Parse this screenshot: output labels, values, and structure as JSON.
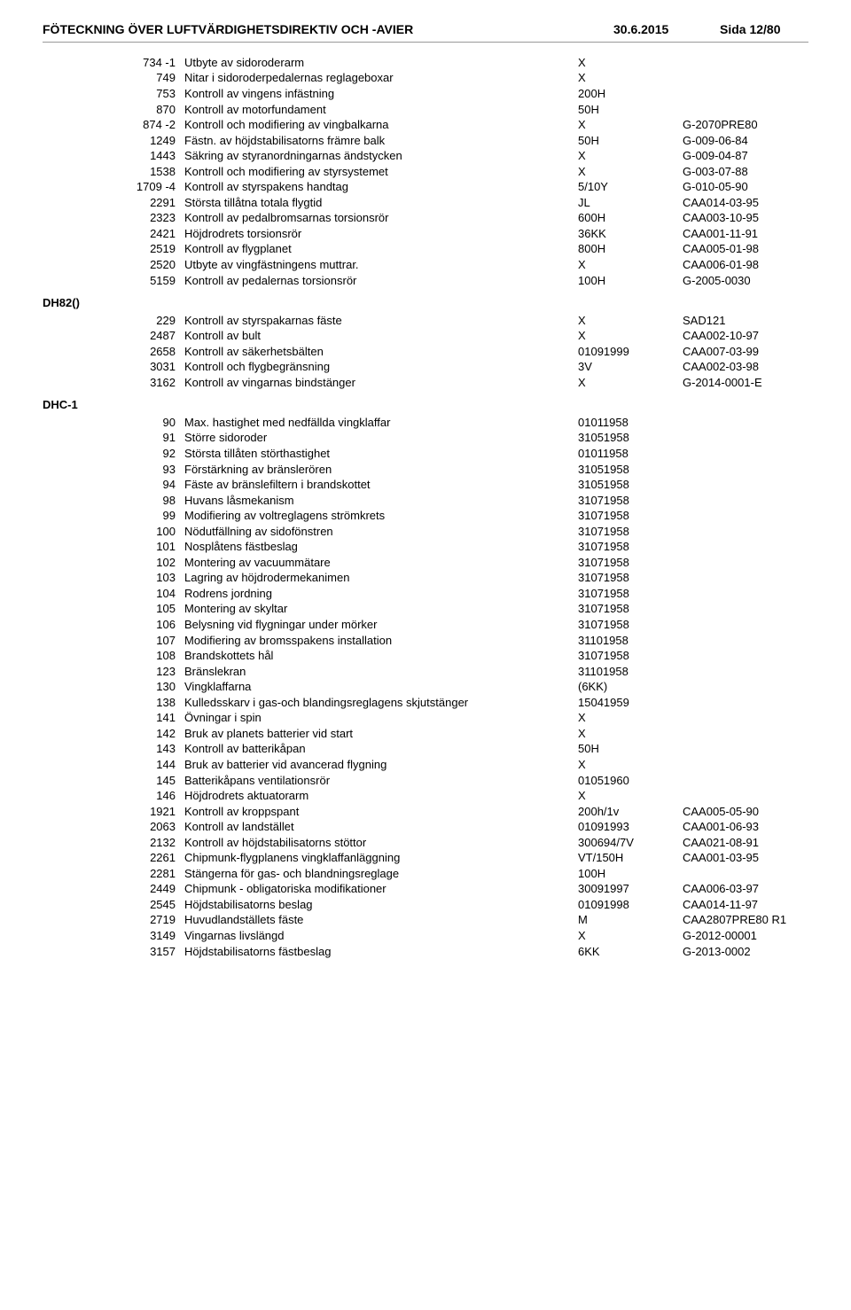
{
  "header": {
    "title": "FÖTECKNING ÖVER LUFTVÄRDIGHETSDIREKTIV OCH -AVIER",
    "date": "30.6.2015",
    "page": "Sida 12/80"
  },
  "groups": [
    {
      "title": "",
      "rows": [
        {
          "code": "734 -1",
          "desc": "Utbyte av sidoroderarm",
          "val": "X",
          "ref": ""
        },
        {
          "code": "749",
          "desc": "Nitar i sidoroderpedalernas reglageboxar",
          "val": "X",
          "ref": ""
        },
        {
          "code": "753",
          "desc": "Kontroll av vingens infästning",
          "val": "200H",
          "ref": ""
        },
        {
          "code": "870",
          "desc": "Kontroll av motorfundament",
          "val": "50H",
          "ref": ""
        },
        {
          "code": "874 -2",
          "desc": "Kontroll och modifiering av vingbalkarna",
          "val": "X",
          "ref": "G-2070PRE80"
        },
        {
          "code": "1249",
          "desc": "Fästn. av höjdstabilisatorns främre balk",
          "val": "50H",
          "ref": "G-009-06-84"
        },
        {
          "code": "1443",
          "desc": "Säkring av styranordningarnas ändstycken",
          "val": "X",
          "ref": "G-009-04-87"
        },
        {
          "code": "1538",
          "desc": "Kontroll och modifiering av styrsystemet",
          "val": "X",
          "ref": "G-003-07-88"
        },
        {
          "code": "1709 -4",
          "desc": "Kontroll av styrspakens handtag",
          "val": "5/10Y",
          "ref": "G-010-05-90"
        },
        {
          "code": "2291",
          "desc": "Största tillåtna totala flygtid",
          "val": "JL",
          "ref": "CAA014-03-95"
        },
        {
          "code": "2323",
          "desc": "Kontroll av pedalbromsarnas torsionsrör",
          "val": "600H",
          "ref": "CAA003-10-95"
        },
        {
          "code": "2421",
          "desc": "Höjdrodrets torsionsrör",
          "val": "36KK",
          "ref": "CAA001-11-91"
        },
        {
          "code": "2519",
          "desc": "Kontroll av flygplanet",
          "val": "800H",
          "ref": "CAA005-01-98"
        },
        {
          "code": "2520",
          "desc": "Utbyte av vingfästningens muttrar.",
          "val": "X",
          "ref": "CAA006-01-98"
        },
        {
          "code": "5159",
          "desc": "Kontroll av pedalernas torsionsrör",
          "val": "100H",
          "ref": "G-2005-0030"
        }
      ]
    },
    {
      "title": "DH82()",
      "rows": [
        {
          "code": "229",
          "desc": "Kontroll av styrspakarnas fäste",
          "val": "X",
          "ref": "SAD121"
        },
        {
          "code": "2487",
          "desc": "Kontroll av bult",
          "val": "X",
          "ref": "CAA002-10-97"
        },
        {
          "code": "2658",
          "desc": "Kontroll av säkerhetsbälten",
          "val": "01091999",
          "ref": "CAA007-03-99"
        },
        {
          "code": "3031",
          "desc": "Kontroll och flygbegränsning",
          "val": "3V",
          "ref": "CAA002-03-98"
        },
        {
          "code": "3162",
          "desc": "Kontroll av vingarnas bindstänger",
          "val": "X",
          "ref": "G-2014-0001-E"
        }
      ]
    },
    {
      "title": "DHC-1",
      "rows": [
        {
          "code": "90",
          "desc": "Max. hastighet med nedfällda vingklaffar",
          "val": "01011958",
          "ref": ""
        },
        {
          "code": "91",
          "desc": "Större sidoroder",
          "val": "31051958",
          "ref": ""
        },
        {
          "code": "92",
          "desc": "Största tillåten störthastighet",
          "val": "01011958",
          "ref": ""
        },
        {
          "code": "93",
          "desc": "Förstärkning av bränslerören",
          "val": "31051958",
          "ref": ""
        },
        {
          "code": "94",
          "desc": "Fäste av bränslefiltern i brandskottet",
          "val": "31051958",
          "ref": ""
        },
        {
          "code": "98",
          "desc": "Huvans låsmekanism",
          "val": "31071958",
          "ref": ""
        },
        {
          "code": "99",
          "desc": "Modifiering av voltreglagens strömkrets",
          "val": "31071958",
          "ref": ""
        },
        {
          "code": "100",
          "desc": "Nödutfällning av sidofönstren",
          "val": "31071958",
          "ref": ""
        },
        {
          "code": "101",
          "desc": "Nosplåtens fästbeslag",
          "val": "31071958",
          "ref": ""
        },
        {
          "code": "102",
          "desc": "Montering av vacuummätare",
          "val": "31071958",
          "ref": ""
        },
        {
          "code": "103",
          "desc": "Lagring av höjdrodermekanimen",
          "val": "31071958",
          "ref": ""
        },
        {
          "code": "104",
          "desc": "Rodrens jordning",
          "val": "31071958",
          "ref": ""
        },
        {
          "code": "105",
          "desc": "Montering av skyltar",
          "val": "31071958",
          "ref": ""
        },
        {
          "code": "106",
          "desc": "Belysning vid flygningar under mörker",
          "val": "31071958",
          "ref": ""
        },
        {
          "code": "107",
          "desc": "Modifiering av bromsspakens installation",
          "val": "31101958",
          "ref": ""
        },
        {
          "code": "108",
          "desc": "Brandskottets hål",
          "val": "31071958",
          "ref": ""
        },
        {
          "code": "123",
          "desc": "Bränslekran",
          "val": "31101958",
          "ref": ""
        },
        {
          "code": "130",
          "desc": "Vingklaffarna",
          "val": "(6KK)",
          "ref": ""
        },
        {
          "code": "138",
          "desc": "Kulledsskarv i gas-och blandingsreglagens skjutstänger",
          "val": "15041959",
          "ref": ""
        },
        {
          "code": "141",
          "desc": "Övningar i spin",
          "val": "X",
          "ref": ""
        },
        {
          "code": "142",
          "desc": "Bruk av planets batterier vid start",
          "val": "X",
          "ref": ""
        },
        {
          "code": "143",
          "desc": "Kontroll av batterikåpan",
          "val": "50H",
          "ref": ""
        },
        {
          "code": "144",
          "desc": "Bruk av batterier vid avancerad flygning",
          "val": "X",
          "ref": ""
        },
        {
          "code": "145",
          "desc": "Batterikåpans ventilationsrör",
          "val": "01051960",
          "ref": ""
        },
        {
          "code": "146",
          "desc": "Höjdrodrets aktuatorarm",
          "val": "X",
          "ref": ""
        },
        {
          "code": "1921",
          "desc": "Kontroll av kroppspant",
          "val": "200h/1v",
          "ref": "CAA005-05-90"
        },
        {
          "code": "2063",
          "desc": "Kontroll av landstället",
          "val": "01091993",
          "ref": "CAA001-06-93"
        },
        {
          "code": "2132",
          "desc": "Kontroll av höjdstabilisatorns stöttor",
          "val": "300694/7V",
          "ref": "CAA021-08-91"
        },
        {
          "code": "2261",
          "desc": "Chipmunk-flygplanens vingklaffanläggning",
          "val": "VT/150H",
          "ref": "CAA001-03-95"
        },
        {
          "code": "2281",
          "desc": "Stängerna för gas- och blandningsreglage",
          "val": "100H",
          "ref": ""
        },
        {
          "code": "2449",
          "desc": "Chipmunk - obligatoriska modifikationer",
          "val": "30091997",
          "ref": "CAA006-03-97"
        },
        {
          "code": "2545",
          "desc": "Höjdstabilisatorns beslag",
          "val": "01091998",
          "ref": "CAA014-11-97"
        },
        {
          "code": "2719",
          "desc": "Huvudlandställets fäste",
          "val": "M",
          "ref": "CAA2807PRE80 R1"
        },
        {
          "code": "3149",
          "desc": "Vingarnas livslängd",
          "val": "X",
          "ref": "G-2012-00001"
        },
        {
          "code": "3157",
          "desc": "Höjdstabilisatorns fästbeslag",
          "val": "6KK",
          "ref": "G-2013-0002"
        }
      ]
    }
  ]
}
